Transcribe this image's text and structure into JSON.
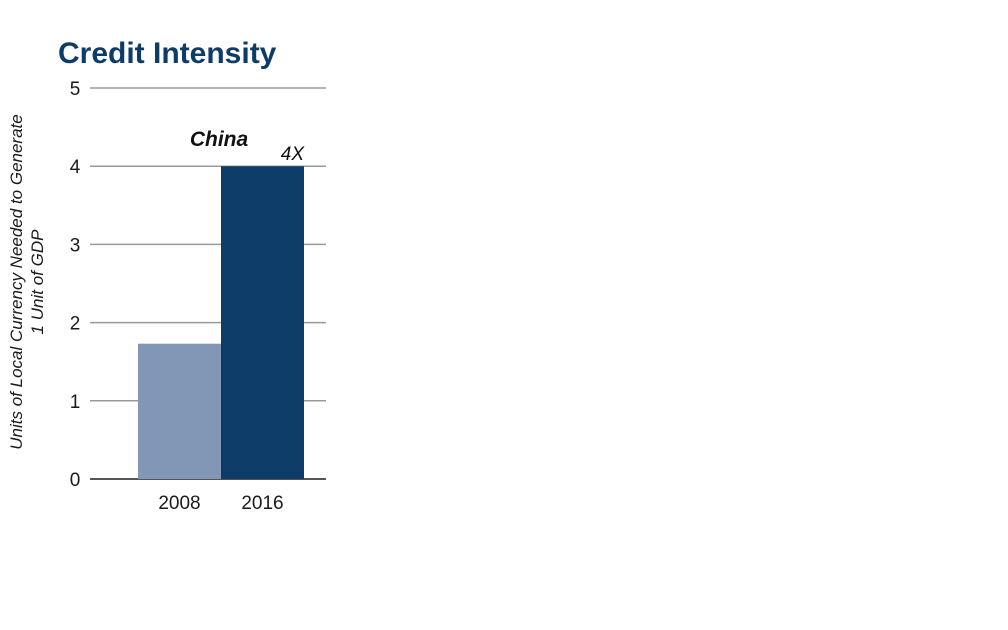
{
  "chart_data": {
    "type": "bar",
    "title": "Credit Intensity",
    "ylabel_lines": [
      "Units of Local Currency Needed to Generate",
      "1 Unit of GDP"
    ],
    "panel_label": "China",
    "categories": [
      "2008",
      "2016"
    ],
    "values": [
      1.73,
      4.0
    ],
    "data_labels": [
      "",
      "4X"
    ],
    "ylim": [
      0,
      5
    ],
    "yticks": [
      0,
      1,
      2,
      3,
      4,
      5
    ],
    "grid": true,
    "colors": {
      "title": "#0d3c69",
      "bars": [
        "#8197b5",
        "#0d3c69"
      ],
      "grid": "#9a9a9a",
      "axis": "#555555"
    }
  }
}
